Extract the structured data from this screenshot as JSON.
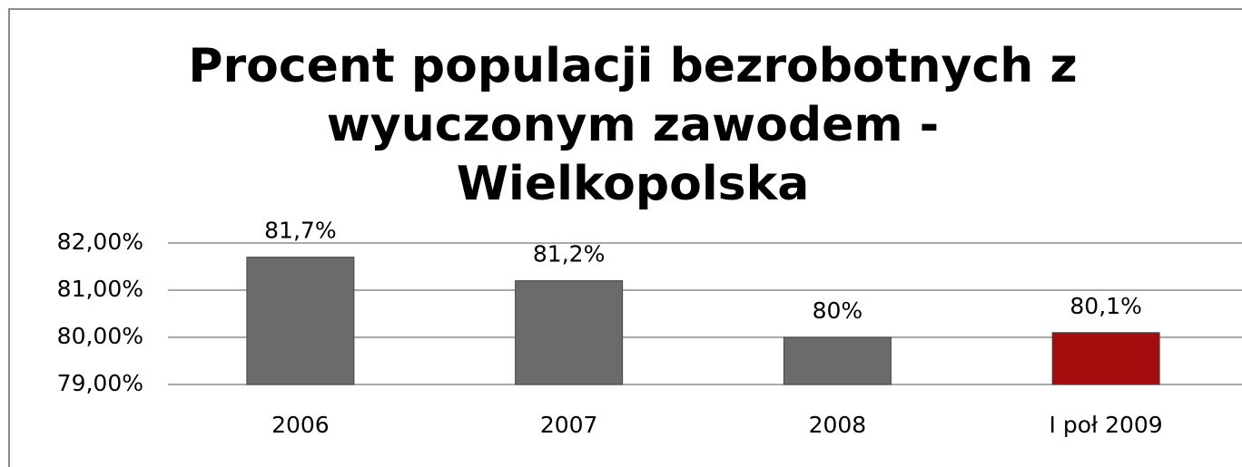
{
  "chart_data": {
    "type": "bar",
    "title": [
      "Procent populacji bezrobotnych z",
      "wyuczonym zawodem -",
      "Wielkopolska"
    ],
    "categories": [
      "2006",
      "2007",
      "2008",
      "I poł 2009"
    ],
    "values": [
      81.7,
      81.2,
      80,
      80.1
    ],
    "value_labels": [
      "81,7%",
      "81,2%",
      "80%",
      "80,1%"
    ],
    "colors": [
      "#6b6b6b",
      "#6b6b6b",
      "#6b6b6b",
      "#a30d0d"
    ],
    "ylim": [
      79,
      82
    ],
    "yticks": [
      {
        "value": 79,
        "label": "79,00%"
      },
      {
        "value": 80,
        "label": "80,00%"
      },
      {
        "value": 81,
        "label": "81,00%"
      },
      {
        "value": 82,
        "label": "82,00%"
      }
    ],
    "grid": true
  }
}
